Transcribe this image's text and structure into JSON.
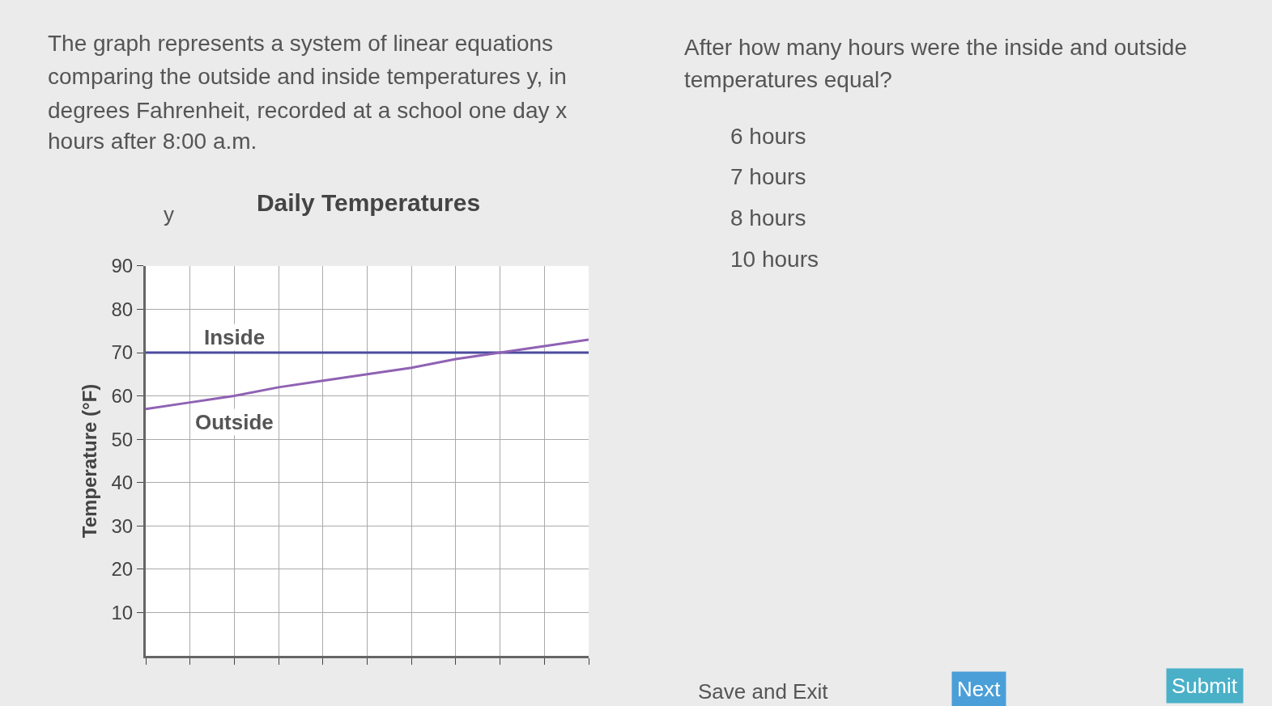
{
  "chart_data": {
    "type": "line",
    "title": "Daily Temperatures",
    "ylabel": "Temperature (°F)",
    "categories": [
      null,
      null,
      null,
      null,
      null,
      null,
      null,
      null,
      null,
      null,
      null
    ],
    "series": [
      {
        "name": "Inside",
        "color": "#4b4b9e",
        "values": [
          70,
          70,
          70,
          70,
          70,
          70,
          70,
          70,
          70,
          70,
          70
        ]
      },
      {
        "name": "Outside",
        "color": "#8f62b3",
        "values": [
          57,
          58.5,
          60,
          62,
          63.5,
          65,
          66.5,
          68.5,
          70,
          71.5,
          73
        ]
      }
    ],
    "ylim": [
      0,
      90
    ],
    "yticks": [
      10,
      20,
      30,
      40,
      50,
      60,
      70,
      80,
      90
    ],
    "grid": true,
    "legend": false,
    "tick_labels": "y",
    "marker": "none",
    "line_style": "solid",
    "annotations": [
      "The graph represents a system of linear equations",
      "comparing the outside and inside temperatures y, in",
      "degrees Fahrenheit, recorded at a school one day x",
      "hours after 8:00 a.m.",
      "After how many hours were the inside and outside",
      "temperatures equal?",
      "6 hours",
      "7 hours",
      "8 hours",
      "10 hours",
      "Save and Exit",
      "Next",
      "Submit",
      "y"
    ]
  }
}
